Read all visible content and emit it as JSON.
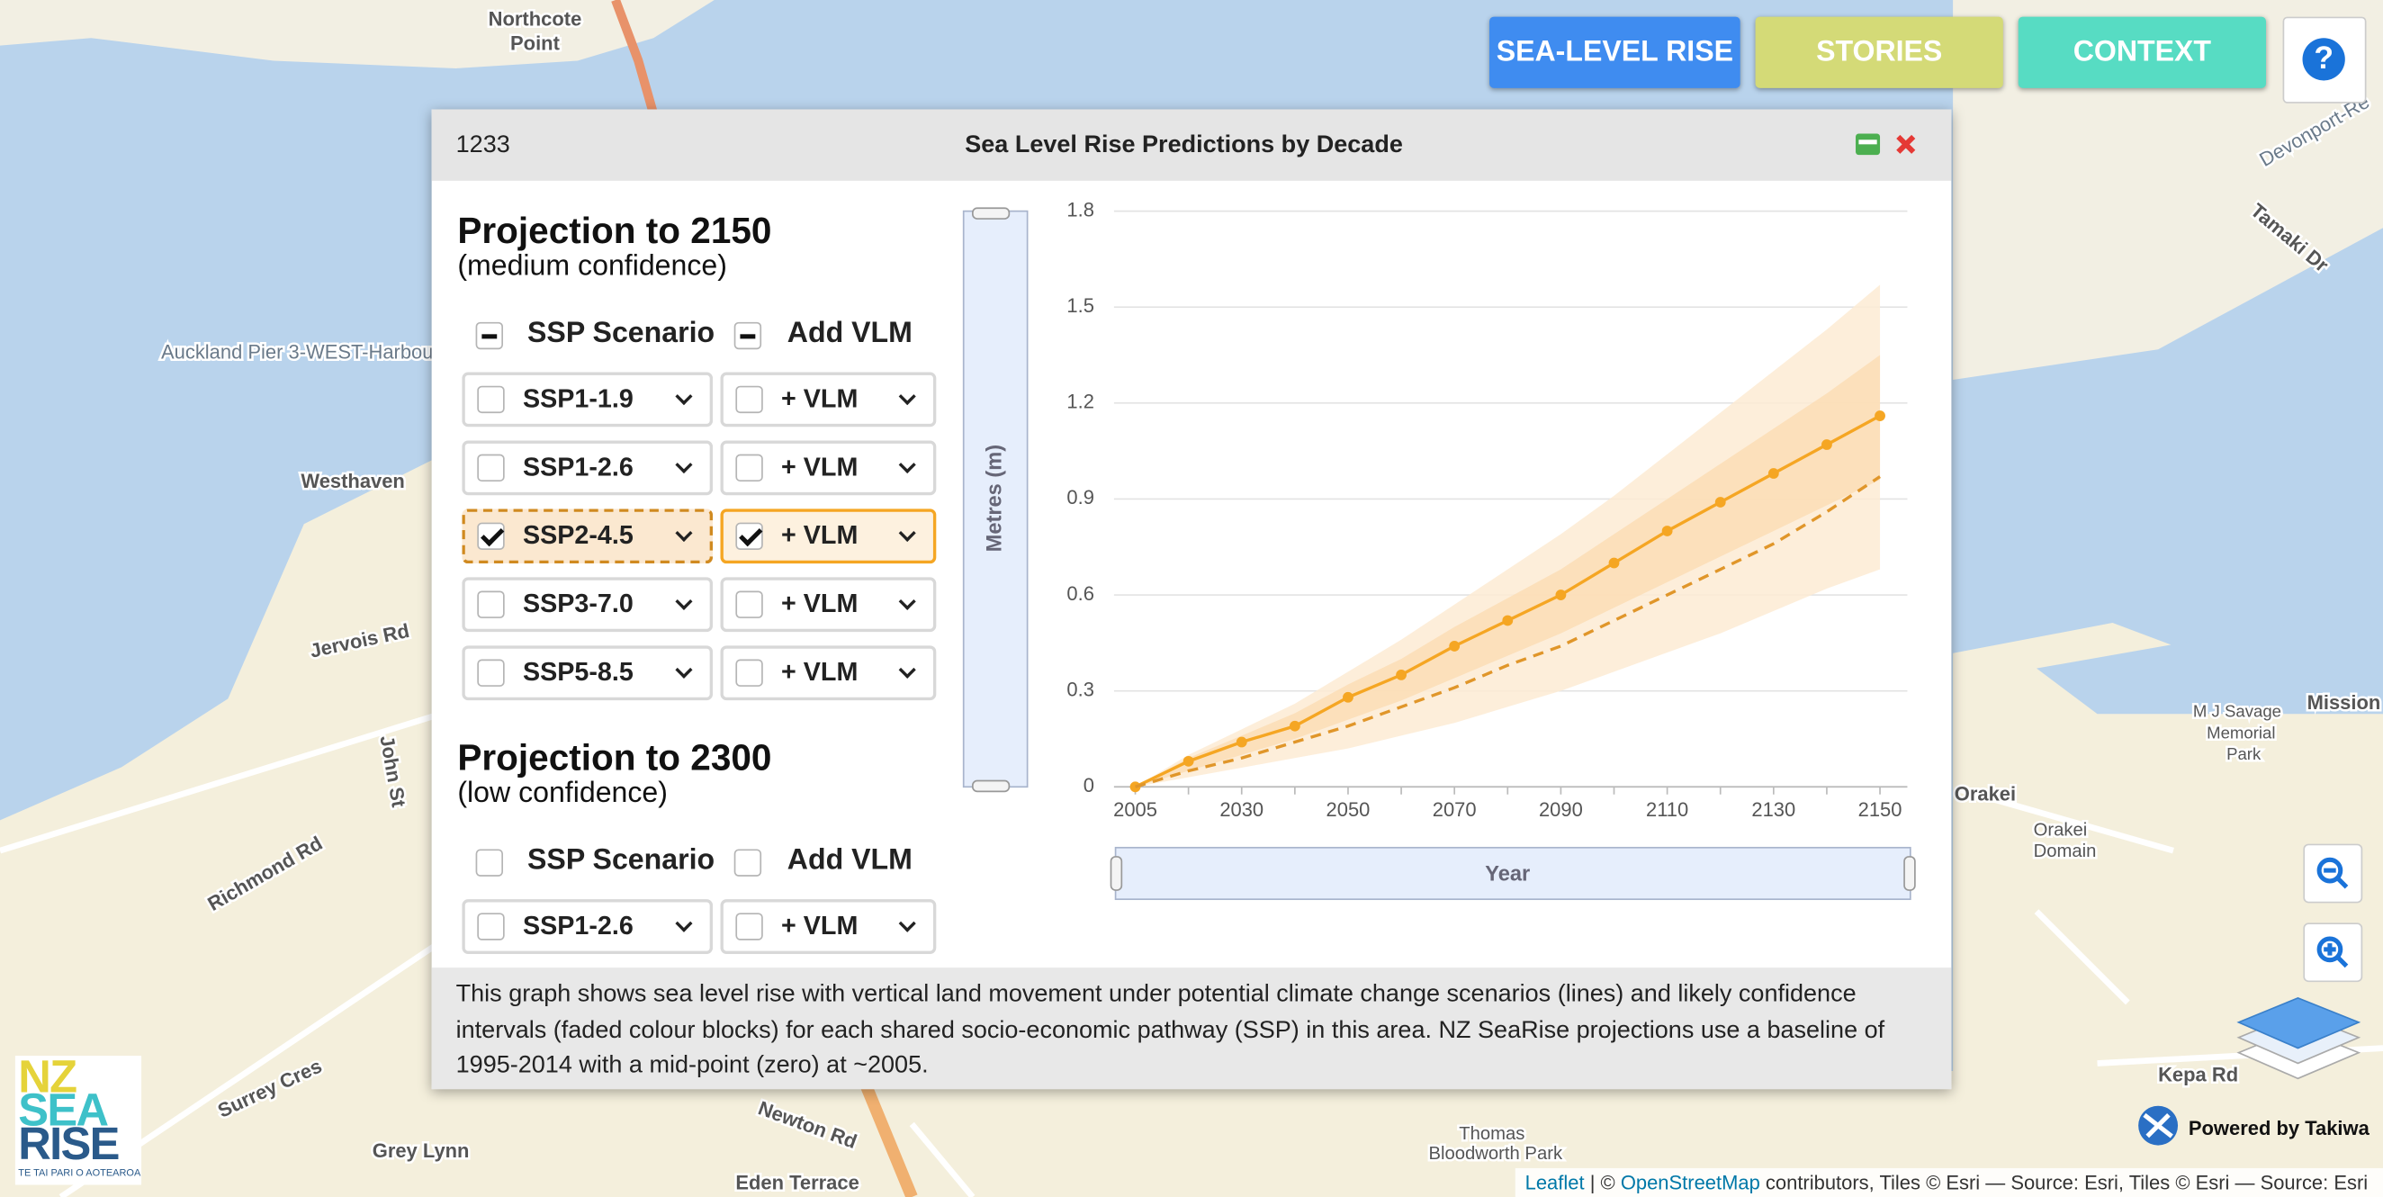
{
  "nav": {
    "buttons": [
      "SEA-LEVEL RISE",
      "STORIES",
      "CONTEXT"
    ],
    "help": "?"
  },
  "panel": {
    "id": "1233",
    "title": "Sea Level Rise Predictions by Decade",
    "sections": [
      {
        "heading": "Projection to 2150",
        "subheading": "(medium confidence)",
        "col_headers": [
          "SSP Scenario",
          "Add VLM"
        ],
        "header_state": "partial",
        "rows": [
          {
            "scenario": "SSP1-1.9",
            "vlm": "+ VLM",
            "checked": false,
            "vlm_checked": false
          },
          {
            "scenario": "SSP1-2.6",
            "vlm": "+ VLM",
            "checked": false,
            "vlm_checked": false
          },
          {
            "scenario": "SSP2-4.5",
            "vlm": "+ VLM",
            "checked": true,
            "vlm_checked": true
          },
          {
            "scenario": "SSP3-7.0",
            "vlm": "+ VLM",
            "checked": false,
            "vlm_checked": false
          },
          {
            "scenario": "SSP5-8.5",
            "vlm": "+ VLM",
            "checked": false,
            "vlm_checked": false
          }
        ]
      },
      {
        "heading": "Projection to 2300",
        "subheading": "(low confidence)",
        "col_headers": [
          "SSP Scenario",
          "Add VLM"
        ],
        "header_state": "none",
        "rows": [
          {
            "scenario": "SSP1-2.6",
            "vlm": "+ VLM",
            "checked": false,
            "vlm_checked": false
          }
        ]
      }
    ],
    "chart": {
      "type": "line",
      "y_label": "Metres (m)",
      "x_label": "Year",
      "categories": [
        "2005",
        null,
        "2030",
        null,
        "2050",
        null,
        "2070",
        null,
        "2090",
        null,
        "2110",
        null,
        "2130",
        null,
        "2150"
      ],
      "ylim": [
        0,
        1.8
      ],
      "yticks": [
        0,
        0.3,
        0.6,
        0.9,
        1.2,
        1.5,
        1.8
      ],
      "grid": true,
      "bands": [
        {
          "color": "#fdebd3",
          "low": [
            0,
            0.03,
            0.06,
            0.09,
            0.12,
            0.16,
            0.2,
            0.25,
            0.3,
            0.36,
            0.42,
            0.48,
            0.55,
            0.62,
            0.68
          ],
          "high": [
            0,
            0.1,
            0.18,
            0.26,
            0.36,
            0.46,
            0.57,
            0.68,
            0.79,
            0.91,
            1.04,
            1.17,
            1.3,
            1.43,
            1.57
          ]
        },
        {
          "color": "#fbddb5",
          "low": [
            0,
            0.05,
            0.1,
            0.15,
            0.21,
            0.27,
            0.34,
            0.41,
            0.48,
            0.56,
            0.64,
            0.72,
            0.8,
            0.88,
            0.96
          ],
          "high": [
            0,
            0.09,
            0.16,
            0.23,
            0.32,
            0.4,
            0.5,
            0.59,
            0.68,
            0.79,
            0.9,
            1.01,
            1.12,
            1.23,
            1.35
          ]
        }
      ],
      "series": [
        {
          "color": "#f5a623",
          "style": "solid",
          "markers": true,
          "values": [
            0,
            0.08,
            0.14,
            0.19,
            0.28,
            0.35,
            0.44,
            0.52,
            0.6,
            0.7,
            0.8,
            0.89,
            0.98,
            1.07,
            1.16
          ]
        },
        {
          "color": "#e0962a",
          "style": "dashed",
          "markers": false,
          "values": [
            0,
            0.05,
            0.09,
            0.14,
            0.19,
            0.25,
            0.31,
            0.38,
            0.44,
            0.52,
            0.6,
            0.68,
            0.76,
            0.86,
            0.97
          ]
        }
      ]
    },
    "description": "This graph shows sea level rise with vertical land movement under potential climate change scenarios (lines) and likely confidence intervals (faded colour blocks) for each shared socio-economic pathway (SSP) in this area. NZ SeaRise projections use a baseline of 1995-2014 with a mid-point (zero) at ~2005."
  },
  "map": {
    "labels": [
      "Northcote",
      "Point",
      "Westhaven",
      "Jervois Rd",
      "Richmond Rd",
      "Grey Lynn",
      "Eden Terrace",
      "Orakei",
      "Mission",
      "M J Savage",
      "Memorial",
      "Park",
      "Kepa Rd",
      "Auckland Pier 3-WEST-Harbour",
      "Devonport-Re",
      "Tamaki Dr",
      "John St",
      "Surrey Cres",
      "Newton Rd",
      "Thomas",
      "Bloodworth Park",
      "Orakei",
      "Domain"
    ],
    "logo": [
      "NZ",
      "SEA",
      "RISE",
      "TE TAI PARI O AOTEAROA"
    ],
    "powered_by": "Powered by Takiwa",
    "attribution": [
      "Leaflet",
      "| ©",
      "OpenStreetMap",
      "contributors, Tiles © Esri — Source: Esri, Tiles © Esri — Source: Esri"
    ]
  }
}
